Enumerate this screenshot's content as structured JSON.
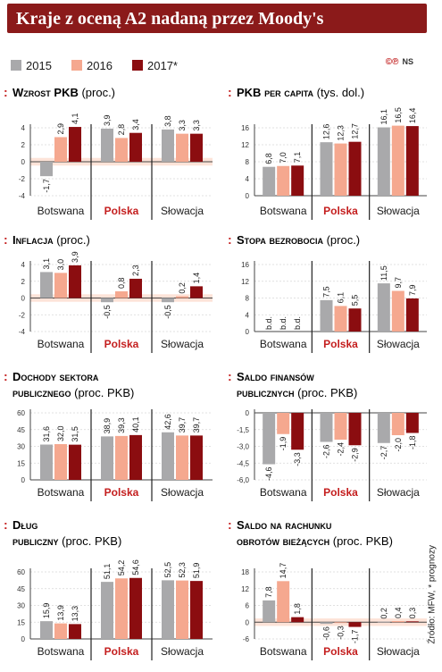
{
  "header": {
    "title": "Kraje z oceną A2 nadaną przez Moody's",
    "brand": "©℗",
    "brand_suffix": "NS"
  },
  "legend": {
    "items": [
      {
        "label": "2015",
        "color": "#a9a9ab"
      },
      {
        "label": "2016",
        "color": "#f5a88f"
      },
      {
        "label": "2017*",
        "color": "#8b0d10"
      }
    ]
  },
  "footer": {
    "source": "Źródło: MFW, * prognozy"
  },
  "colors": {
    "series": [
      "#a9a9ab",
      "#f5a88f",
      "#8b0d10"
    ],
    "zero_band": "#fde3d8",
    "grid": "#d8d8d8",
    "accent": "#c41e1e"
  },
  "chart_data": [
    {
      "type": "bar",
      "title_caps": "Wzrost PKB",
      "title_rest": "(proc.)",
      "categories": [
        "Botswana",
        "Polska",
        "Słowacja"
      ],
      "series": [
        {
          "name": "2015",
          "values": [
            -1.7,
            3.9,
            3.8
          ],
          "labels": [
            "-1,7",
            "3,9",
            "3,8"
          ]
        },
        {
          "name": "2016",
          "values": [
            2.9,
            2.8,
            3.3
          ],
          "labels": [
            "2,9",
            "2,8",
            "3,3"
          ]
        },
        {
          "name": "2017*",
          "values": [
            4.1,
            3.4,
            3.3
          ],
          "labels": [
            "4,1",
            "3,4",
            "3,3"
          ]
        }
      ],
      "ylim": [
        -4,
        4
      ],
      "yticks": [
        -4,
        -2,
        0,
        2,
        4
      ],
      "ytick_labels": [
        "-4",
        "-2",
        "0",
        "2",
        "4"
      ]
    },
    {
      "type": "bar",
      "title_caps": "PKB per capita",
      "title_rest": "(tys. dol.)",
      "categories": [
        "Botswana",
        "Polska",
        "Słowacja"
      ],
      "series": [
        {
          "name": "2015",
          "values": [
            6.8,
            12.6,
            16.1
          ],
          "labels": [
            "6,8",
            "12,6",
            "16,1"
          ]
        },
        {
          "name": "2016",
          "values": [
            7.0,
            12.3,
            16.5
          ],
          "labels": [
            "7,0",
            "12,3",
            "16,5"
          ]
        },
        {
          "name": "2017*",
          "values": [
            7.1,
            12.7,
            16.4
          ],
          "labels": [
            "7,1",
            "12,7",
            "16,4"
          ]
        }
      ],
      "ylim": [
        0,
        16
      ],
      "yticks": [
        0,
        4,
        8,
        12,
        16
      ],
      "ytick_labels": [
        "0",
        "4",
        "8",
        "12",
        "16"
      ]
    },
    {
      "type": "bar",
      "title_caps": "Inflacja",
      "title_rest": "(proc.)",
      "categories": [
        "Botswana",
        "Polska",
        "Słowacja"
      ],
      "series": [
        {
          "name": "2015",
          "values": [
            3.1,
            -0.5,
            -0.5
          ],
          "labels": [
            "3,1",
            "-0,5",
            "-0,5"
          ]
        },
        {
          "name": "2016",
          "values": [
            3.0,
            0.8,
            0.2
          ],
          "labels": [
            "3,0",
            "0,8",
            "0,2"
          ]
        },
        {
          "name": "2017*",
          "values": [
            3.9,
            2.3,
            1.4
          ],
          "labels": [
            "3,9",
            "2,3",
            "1,4"
          ]
        }
      ],
      "ylim": [
        -4,
        4
      ],
      "yticks": [
        -4,
        -2,
        0,
        2,
        4
      ],
      "ytick_labels": [
        "-4",
        "-2",
        "0",
        "2",
        "4"
      ]
    },
    {
      "type": "bar",
      "title_caps": "Stopa bezrobocia",
      "title_rest": "(proc.)",
      "categories": [
        "Botswana",
        "Polska",
        "Słowacja"
      ],
      "series": [
        {
          "name": "2015",
          "values": [
            null,
            7.5,
            11.5
          ],
          "labels": [
            "b.d.",
            "7,5",
            "11,5"
          ]
        },
        {
          "name": "2016",
          "values": [
            null,
            6.1,
            9.7
          ],
          "labels": [
            "b.d.",
            "6,1",
            "9,7"
          ]
        },
        {
          "name": "2017*",
          "values": [
            null,
            5.5,
            7.9
          ],
          "labels": [
            "b.d.",
            "5,5",
            "7,9"
          ]
        }
      ],
      "ylim": [
        0,
        16
      ],
      "yticks": [
        0,
        4,
        8,
        12,
        16
      ],
      "ytick_labels": [
        "0",
        "4",
        "8",
        "12",
        "16"
      ]
    },
    {
      "type": "bar",
      "title_caps": "Dochody sektora publicznego",
      "title_rest": "(proc. PKB)",
      "categories": [
        "Botswana",
        "Polska",
        "Słowacja"
      ],
      "series": [
        {
          "name": "2015",
          "values": [
            31.6,
            38.9,
            42.6
          ],
          "labels": [
            "31,6",
            "38,9",
            "42,6"
          ]
        },
        {
          "name": "2016",
          "values": [
            32.0,
            39.3,
            39.7
          ],
          "labels": [
            "32,0",
            "39,3",
            "39,7"
          ]
        },
        {
          "name": "2017*",
          "values": [
            31.5,
            40.1,
            39.7
          ],
          "labels": [
            "31,5",
            "40,1",
            "39,7"
          ]
        }
      ],
      "ylim": [
        0,
        60
      ],
      "yticks": [
        0,
        15,
        30,
        45,
        60
      ],
      "ytick_labels": [
        "0",
        "15",
        "30",
        "45",
        "60"
      ]
    },
    {
      "type": "bar",
      "title_caps": "Saldo finansów publicznych",
      "title_rest": "(proc. PKB)",
      "categories": [
        "Botswana",
        "Polska",
        "Słowacja"
      ],
      "series": [
        {
          "name": "2015",
          "values": [
            -4.6,
            -2.6,
            -2.7
          ],
          "labels": [
            "-4,6",
            "-2,6",
            "-2,7"
          ]
        },
        {
          "name": "2016",
          "values": [
            -1.9,
            -2.4,
            -2.0
          ],
          "labels": [
            "-1,9",
            "-2,4",
            "-2,0"
          ]
        },
        {
          "name": "2017*",
          "values": [
            -3.3,
            -2.9,
            -1.8
          ],
          "labels": [
            "-3,3",
            "-2,9",
            "-1,8"
          ]
        }
      ],
      "ylim": [
        -6,
        0
      ],
      "yticks": [
        0,
        -1.5,
        -3,
        -4.5,
        -6
      ],
      "ytick_labels": [
        "0",
        "-1,5",
        "-3,0",
        "-4,5",
        "-6,0"
      ]
    },
    {
      "type": "bar",
      "title_caps": "Dług publiczny",
      "title_rest": "(proc. PKB)",
      "categories": [
        "Botswana",
        "Polska",
        "Słowacja"
      ],
      "series": [
        {
          "name": "2015",
          "values": [
            15.9,
            51.1,
            52.5
          ],
          "labels": [
            "15,9",
            "51,1",
            "52,5"
          ]
        },
        {
          "name": "2016",
          "values": [
            13.9,
            54.2,
            52.3
          ],
          "labels": [
            "13,9",
            "54,2",
            "52,3"
          ]
        },
        {
          "name": "2017*",
          "values": [
            13.3,
            54.6,
            51.9
          ],
          "labels": [
            "13,3",
            "54,6",
            "51,9"
          ]
        }
      ],
      "ylim": [
        0,
        60
      ],
      "yticks": [
        0,
        15,
        30,
        45,
        60
      ],
      "ytick_labels": [
        "0",
        "15",
        "30",
        "45",
        "60"
      ]
    },
    {
      "type": "bar",
      "title_caps": "Saldo na rachunku obrotów bieżących",
      "title_rest": "(proc. PKB)",
      "categories": [
        "Botswana",
        "Polska",
        "Słowacja"
      ],
      "series": [
        {
          "name": "2015",
          "values": [
            7.8,
            -0.6,
            0.2
          ],
          "labels": [
            "7,8",
            "-0,6",
            "0,2"
          ]
        },
        {
          "name": "2016",
          "values": [
            14.7,
            -0.3,
            0.4
          ],
          "labels": [
            "14,7",
            "-0,3",
            "0,4"
          ]
        },
        {
          "name": "2017*",
          "values": [
            1.8,
            -1.7,
            0.3
          ],
          "labels": [
            "1,8",
            "-1,7",
            "0,3"
          ]
        }
      ],
      "ylim": [
        -6,
        18
      ],
      "yticks": [
        18,
        12,
        6,
        0,
        -6
      ],
      "ytick_labels": [
        "18",
        "12",
        "6",
        "0",
        "-6"
      ]
    }
  ]
}
